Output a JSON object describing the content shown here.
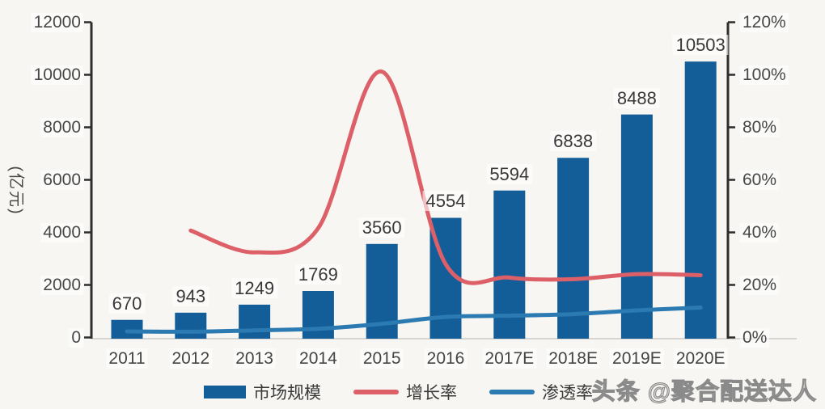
{
  "chart_data": {
    "type": "bar+line",
    "title": "",
    "categories": [
      "2011",
      "2012",
      "2013",
      "2014",
      "2015",
      "2016",
      "2017E",
      "2018E",
      "2019E",
      "2020E"
    ],
    "series": [
      {
        "name": "市场规模",
        "kind": "bar",
        "axis": "left",
        "unit": "亿元",
        "values": [
          670,
          943,
          1249,
          1769,
          3560,
          4554,
          5594,
          6838,
          8488,
          10503
        ]
      },
      {
        "name": "增长率",
        "kind": "line",
        "axis": "right",
        "unit": "%",
        "values": [
          null,
          40.7,
          32.4,
          41.6,
          101.2,
          27.9,
          22.8,
          22.2,
          24.1,
          23.7
        ]
      },
      {
        "name": "渗透率",
        "kind": "line",
        "axis": "right",
        "unit": "%",
        "values": [
          2.3,
          2.2,
          2.7,
          3.3,
          5.2,
          7.8,
          8.3,
          8.9,
          10.3,
          11.4
        ]
      }
    ],
    "bar_value_labels": [
      "670",
      "943",
      "1249",
      "1769",
      "3560",
      "4554",
      "5594",
      "6838",
      "8488",
      "10503"
    ],
    "left_axis": {
      "title": "(亿元)",
      "min": 0,
      "max": 12000,
      "step": 2000,
      "tick_labels": [
        "0",
        "2000",
        "4000",
        "6000",
        "8000",
        "10000",
        "12000"
      ]
    },
    "right_axis": {
      "min": 0,
      "max": 120,
      "step": 20,
      "tick_labels": [
        "0%",
        "20%",
        "40%",
        "60%",
        "80%",
        "100%",
        "120%"
      ]
    },
    "legend_position": "bottom",
    "grid": false
  },
  "legend": {
    "items": [
      {
        "key": "market-size",
        "label": "市场规模",
        "swatch": "bar",
        "color": "#135e99"
      },
      {
        "key": "growth-rate",
        "label": "增长率",
        "swatch": "line",
        "color": "#dd5f68"
      },
      {
        "key": "penetration-rate",
        "label": "渗透率",
        "swatch": "line",
        "color": "#2b7ab2"
      }
    ]
  },
  "watermark": {
    "text": "头条 @聚合配送达人"
  },
  "colors": {
    "bar": "#135e99",
    "growth_line": "#dd5f68",
    "penetration_line": "#2b7ab2",
    "axis": "#2d2d2d",
    "baseline": "#cbcac6",
    "text": "#454545",
    "background": "#f7f6f2",
    "watermark": "#8a8a8a"
  }
}
